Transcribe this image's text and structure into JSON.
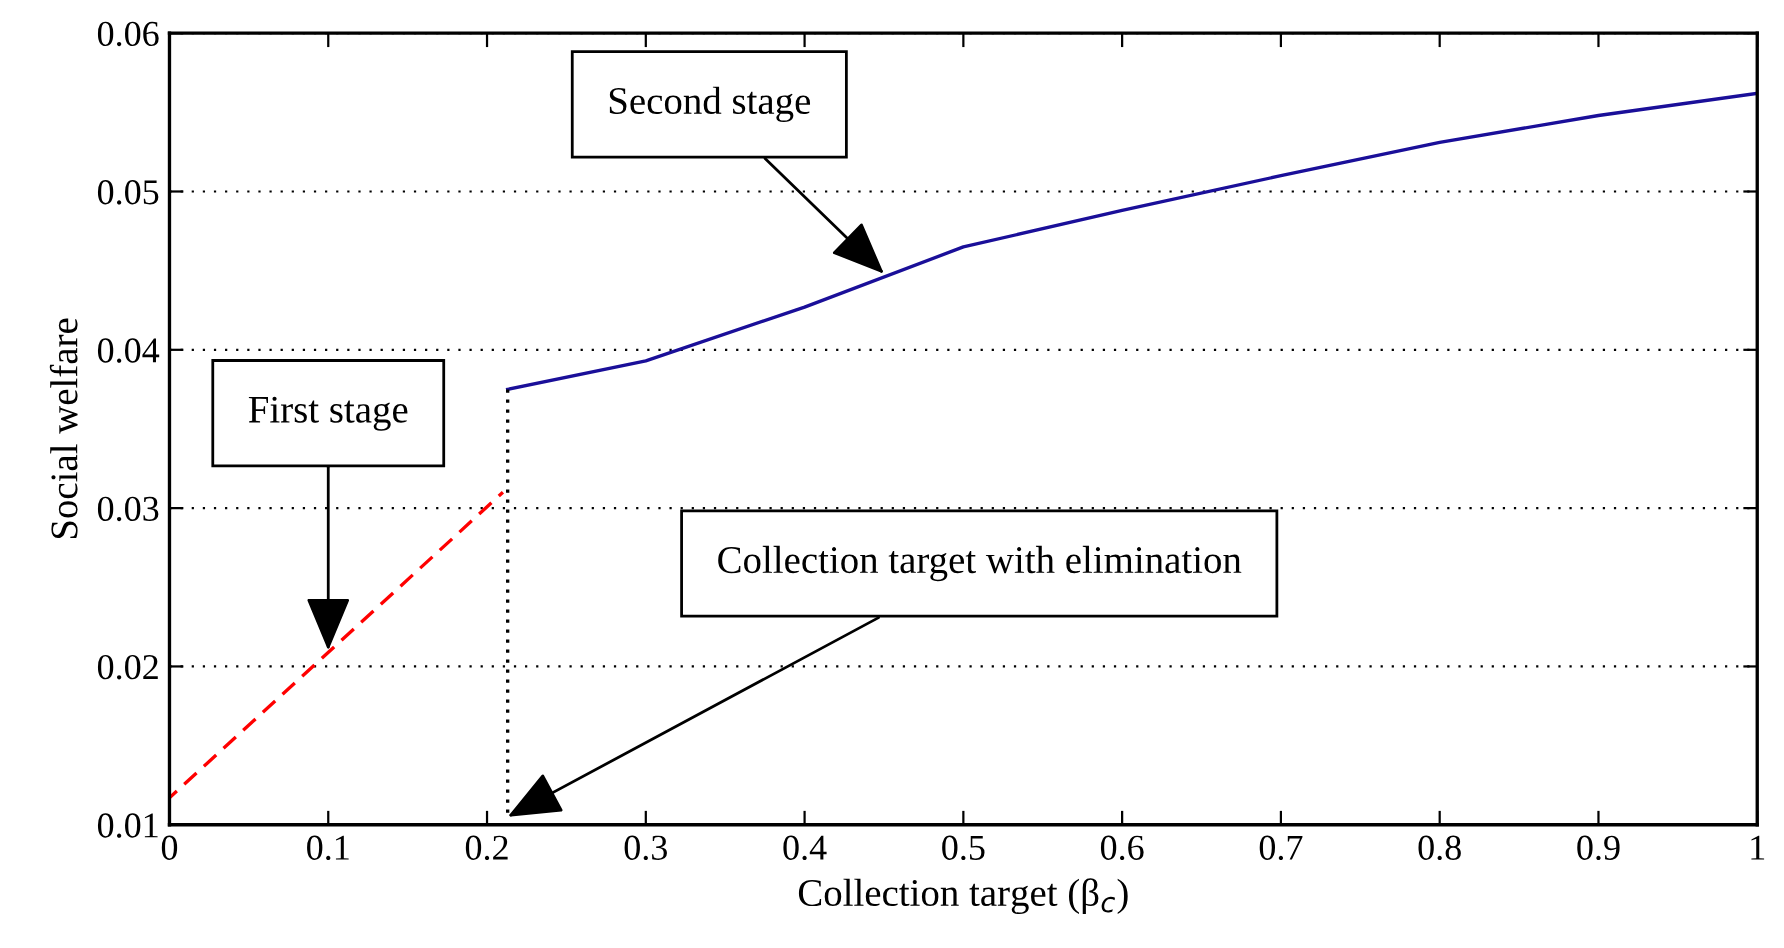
{
  "chart_data": {
    "type": "line",
    "xlabel": "Collection target (β$_{c}$)",
    "ylabel": "Social welfare",
    "xlim": [
      0,
      1
    ],
    "ylim": [
      0.01,
      0.06
    ],
    "xticks": [
      0,
      0.1,
      0.2,
      0.3,
      0.4,
      0.5,
      0.6,
      0.7,
      0.8,
      0.9,
      1
    ],
    "yticks": [
      0.01,
      0.02,
      0.03,
      0.04,
      0.05,
      0.06
    ],
    "grid": "y",
    "legend": false,
    "series": [
      {
        "color": "#ff0000",
        "line_style": "dashed",
        "x": [
          0,
          0.21
        ],
        "values": [
          0.0117,
          0.031
        ]
      },
      {
        "color": "#1a0f99",
        "line_style": "solid",
        "x": [
          0.213,
          0.3,
          0.4,
          0.5,
          0.6,
          0.7,
          0.8,
          0.9,
          1.0
        ],
        "values": [
          0.0375,
          0.0393,
          0.0427,
          0.0465,
          0.0488,
          0.051,
          0.0531,
          0.0548,
          0.0562
        ]
      },
      {
        "color": "#000000",
        "line_style": "dotted",
        "x": [
          0.213,
          0.213
        ],
        "values": [
          0.0375,
          0.0105
        ]
      }
    ],
    "annotations": [
      {
        "text": "First stage",
        "x": 0.1,
        "y": 0.021
      },
      {
        "text": "Second stage",
        "x": 0.45,
        "y": 0.0448
      },
      {
        "text": "Collection target with elimination",
        "x": 0.213,
        "y": 0.0105
      }
    ]
  }
}
